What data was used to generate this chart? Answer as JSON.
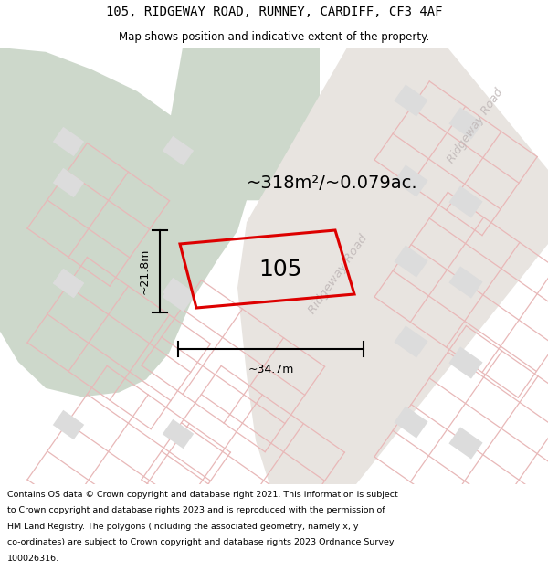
{
  "title_line1": "105, RIDGEWAY ROAD, RUMNEY, CARDIFF, CF3 4AF",
  "title_line2": "Map shows position and indicative extent of the property.",
  "area_text": "~318m²/~0.079ac.",
  "dim_width": "~34.7m",
  "dim_height": "~21.8m",
  "label_105": "105",
  "footer_lines": [
    "Contains OS data © Crown copyright and database right 2021. This information is subject",
    "to Crown copyright and database rights 2023 and is reproduced with the permission of",
    "HM Land Registry. The polygons (including the associated geometry, namely x, y",
    "co-ordinates) are subject to Crown copyright and database rights 2023 Ordnance Survey",
    "100026316."
  ],
  "map_bg": "#f5f4f2",
  "green_color": "#cdd8cb",
  "plot_line_color": "#e8b8b8",
  "building_color": "#dcdcdc",
  "highlight_color": "#dd0000",
  "road_label_color": "#c0b8b8",
  "figsize": [
    6.0,
    6.25
  ],
  "dpi": 100
}
